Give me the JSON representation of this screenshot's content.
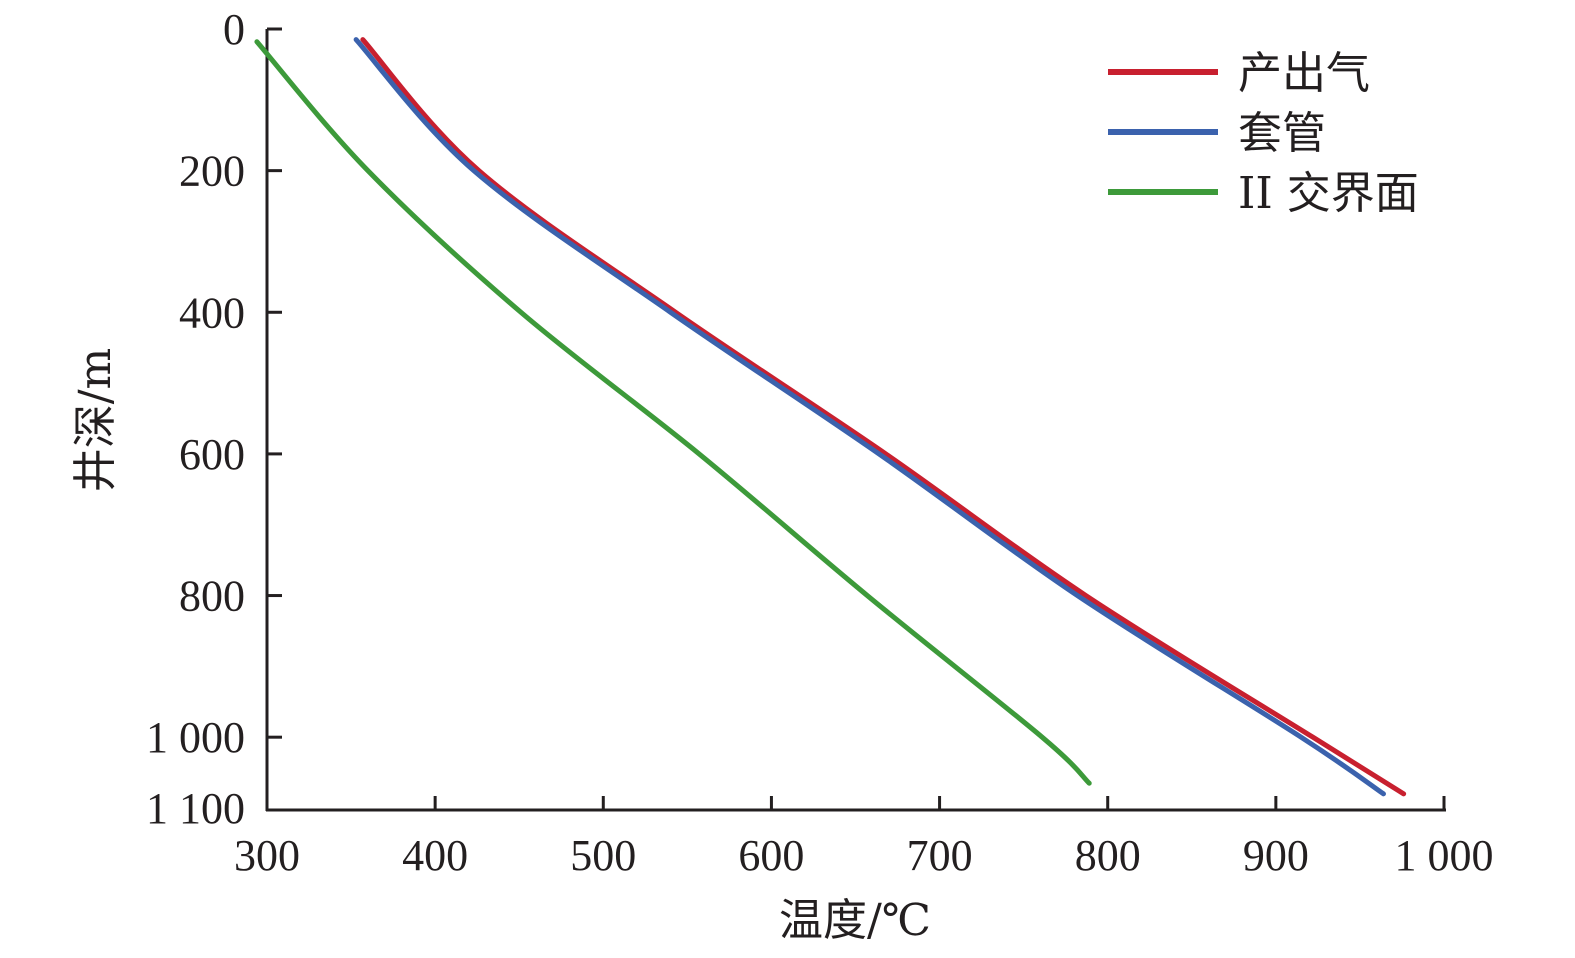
{
  "chart_data": {
    "type": "line",
    "title": "",
    "xlabel": "温度/℃",
    "ylabel": "井深/m",
    "xlim": [
      300,
      1000
    ],
    "ylim": [
      0,
      1100
    ],
    "y_inverted": true,
    "grid": false,
    "legend_position": "top-right",
    "xticks": [
      300,
      400,
      500,
      600,
      700,
      800,
      900,
      1000
    ],
    "xtick_labels": [
      "300",
      "400",
      "500",
      "600",
      "700",
      "800",
      "900",
      "1 000"
    ],
    "yticks": [
      0,
      200,
      400,
      600,
      800,
      1000,
      1100
    ],
    "ytick_labels": [
      "0",
      "200",
      "400",
      "600",
      "800",
      "1 000",
      "1 100"
    ],
    "series": [
      {
        "name": "产出气",
        "color": "#c8202f",
        "points": [
          [
            357,
            15
          ],
          [
            426,
            200
          ],
          [
            543,
            400
          ],
          [
            668,
            600
          ],
          [
            787,
            800
          ],
          [
            922,
            1000
          ],
          [
            976,
            1080
          ]
        ]
      },
      {
        "name": "套管",
        "color": "#3b62ad",
        "points": [
          [
            353,
            15
          ],
          [
            423,
            200
          ],
          [
            540,
            400
          ],
          [
            664,
            600
          ],
          [
            782,
            800
          ],
          [
            915,
            1000
          ],
          [
            964,
            1080
          ]
        ]
      },
      {
        "name": "II 交界面",
        "color": "#3d9a3a",
        "points": [
          [
            294,
            18
          ],
          [
            360,
            200
          ],
          [
            451,
            400
          ],
          [
            557,
            600
          ],
          [
            657,
            800
          ],
          [
            761,
            1000
          ],
          [
            789,
            1065
          ]
        ]
      }
    ]
  }
}
